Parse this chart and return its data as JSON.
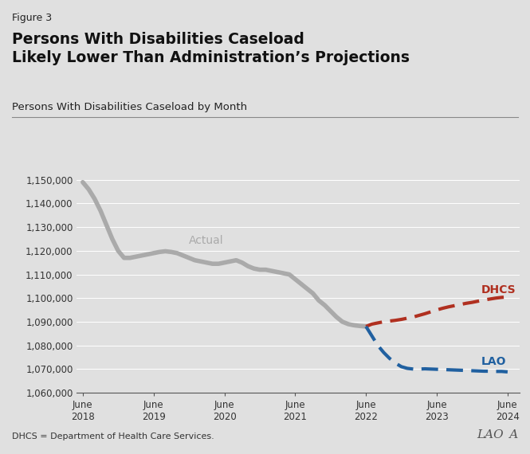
{
  "figure_label": "Figure 3",
  "title": "Persons With Disabilities Caseload\nLikely Lower Than Administration’s Projections",
  "subtitle": "Persons With Disabilities Caseload by Month",
  "footnote": "DHCS = Department of Health Care Services.",
  "background_color": "#e0e0e0",
  "plot_background_color": "#e0e0e0",
  "ylim": [
    1060000,
    1155000
  ],
  "yticks": [
    1060000,
    1070000,
    1080000,
    1090000,
    1100000,
    1110000,
    1120000,
    1130000,
    1140000,
    1150000
  ],
  "xtick_labels": [
    "June\n2018",
    "June\n2019",
    "June\n2020",
    "June\n2021",
    "June\n2022",
    "June\n2023",
    "June\n2024"
  ],
  "actual_color": "#aaaaaa",
  "dhcs_color": "#b03020",
  "lao_color": "#2060a0",
  "actual_label": "Actual",
  "dhcs_label": "DHCS",
  "lao_label": "LAO",
  "actual_x": [
    0,
    1,
    2,
    3,
    4,
    5,
    6,
    7,
    8,
    9,
    10,
    11,
    12,
    13,
    14,
    15,
    16,
    17,
    18,
    19,
    20,
    21,
    22,
    23,
    24,
    25,
    26,
    27,
    28,
    29,
    30,
    31,
    32,
    33,
    34,
    35,
    36,
    37,
    38,
    39,
    40,
    41,
    42,
    43,
    44,
    45,
    46,
    47,
    48
  ],
  "actual_y": [
    1149000,
    1146000,
    1142000,
    1137000,
    1131000,
    1125000,
    1120000,
    1117000,
    1117000,
    1117500,
    1118000,
    1118500,
    1119000,
    1119500,
    1119800,
    1119500,
    1119000,
    1118000,
    1117000,
    1116000,
    1115500,
    1115000,
    1114500,
    1114500,
    1115000,
    1115500,
    1116000,
    1115000,
    1113500,
    1112500,
    1112000,
    1112000,
    1111500,
    1111000,
    1110500,
    1110000,
    1108000,
    1106000,
    1104000,
    1102000,
    1099000,
    1097000,
    1094500,
    1092000,
    1090000,
    1089000,
    1088500,
    1088200,
    1088000
  ],
  "dhcs_x": [
    48,
    49,
    50,
    51,
    52,
    53,
    54,
    55,
    56,
    57,
    58,
    59,
    60,
    61,
    62,
    63,
    64,
    65,
    66,
    67,
    68,
    69,
    70,
    71,
    72
  ],
  "dhcs_y": [
    1088000,
    1089000,
    1089500,
    1090000,
    1090300,
    1090600,
    1091000,
    1091500,
    1092000,
    1092700,
    1093400,
    1094200,
    1095000,
    1095700,
    1096300,
    1096800,
    1097300,
    1097800,
    1098200,
    1098700,
    1099200,
    1099600,
    1100000,
    1100300,
    1100500
  ],
  "lao_x": [
    48,
    49,
    50,
    51,
    52,
    53,
    54,
    55,
    56,
    57,
    58,
    59,
    60,
    61,
    62,
    63,
    64,
    65,
    66,
    67,
    68,
    69,
    70,
    71,
    72
  ],
  "lao_y": [
    1088000,
    1084000,
    1080000,
    1077000,
    1074500,
    1072500,
    1071000,
    1070300,
    1070000,
    1070000,
    1070100,
    1070000,
    1069900,
    1069800,
    1069700,
    1069600,
    1069500,
    1069400,
    1069300,
    1069200,
    1069100,
    1069100,
    1069000,
    1069000,
    1068800
  ]
}
